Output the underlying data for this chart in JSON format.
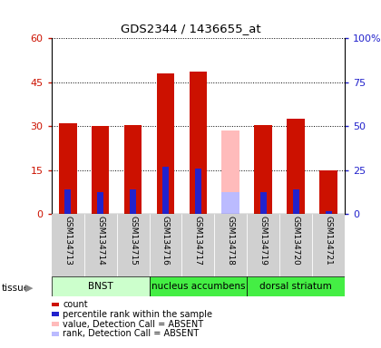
{
  "title": "GDS2344 / 1436655_at",
  "samples": [
    "GSM134713",
    "GSM134714",
    "GSM134715",
    "GSM134716",
    "GSM134717",
    "GSM134718",
    "GSM134719",
    "GSM134720",
    "GSM134721"
  ],
  "count_values": [
    31.0,
    30.0,
    30.5,
    48.0,
    48.5,
    null,
    30.5,
    32.5,
    15.0
  ],
  "rank_values": [
    8.5,
    7.5,
    8.5,
    16.0,
    15.5,
    null,
    7.5,
    8.5,
    1.0
  ],
  "absent_value": 28.5,
  "absent_rank": 7.5,
  "absent_index": 5,
  "ylim_left": [
    0,
    60
  ],
  "ylim_right": [
    0,
    100
  ],
  "yticks_left": [
    0,
    15,
    30,
    45,
    60
  ],
  "ytick_labels_left": [
    "0",
    "15",
    "30",
    "45",
    "60"
  ],
  "yticks_right": [
    0,
    25,
    50,
    75,
    100
  ],
  "ytick_labels_right": [
    "0",
    "25",
    "50",
    "75",
    "100%"
  ],
  "count_color": "#cc1100",
  "rank_color": "#2222cc",
  "absent_bar_color": "#ffbbbb",
  "absent_rank_color": "#bbbbff",
  "bar_width": 0.55,
  "tissue_groups": [
    {
      "label": "BNST",
      "start": 0,
      "end": 3,
      "color": "#ccffcc"
    },
    {
      "label": "nucleus accumbens",
      "start": 3,
      "end": 6,
      "color": "#44ee44"
    },
    {
      "label": "dorsal striatum",
      "start": 6,
      "end": 9,
      "color": "#44ee44"
    }
  ],
  "legend_items": [
    {
      "color": "#cc1100",
      "label": "count"
    },
    {
      "color": "#2222cc",
      "label": "percentile rank within the sample"
    },
    {
      "color": "#ffbbbb",
      "label": "value, Detection Call = ABSENT"
    },
    {
      "color": "#bbbbff",
      "label": "rank, Detection Call = ABSENT"
    }
  ]
}
